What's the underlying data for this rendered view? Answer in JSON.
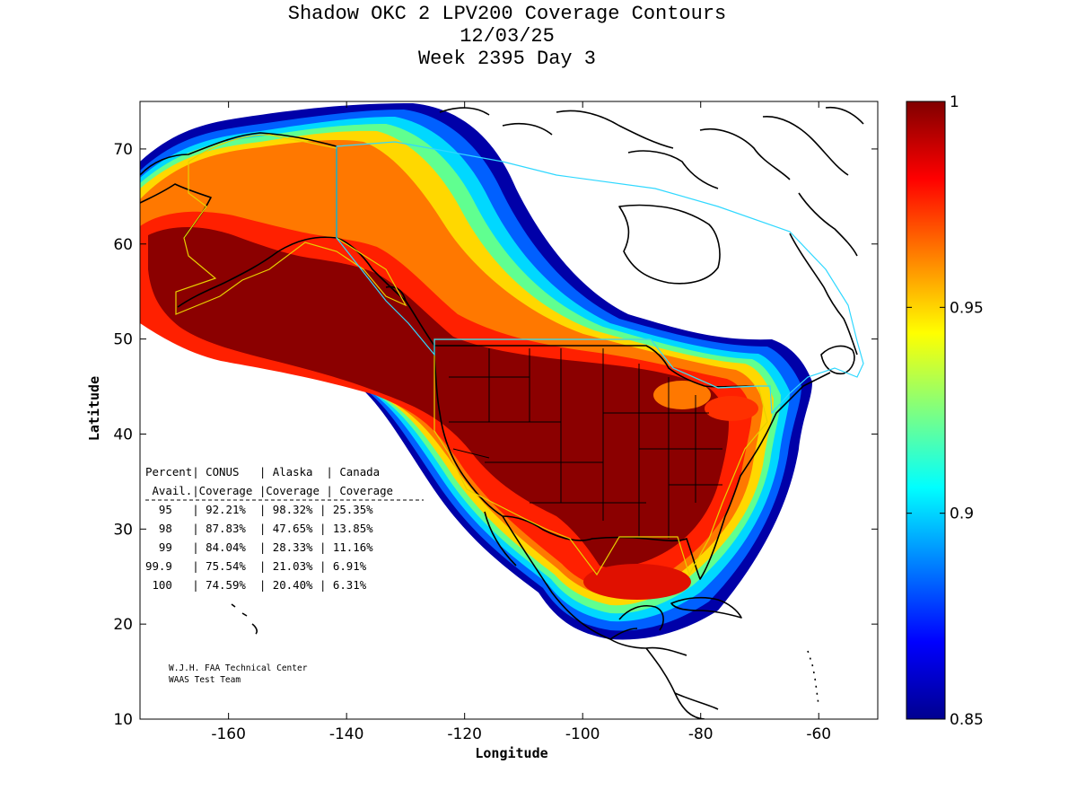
{
  "title": {
    "line1": "Shadow OKC 2 LPV200 Coverage Contours",
    "line2": "12/03/25",
    "line3": "Week 2395 Day 3"
  },
  "axes": {
    "xlabel": "Longitude",
    "ylabel": "Latitude",
    "xticks": [
      "-160",
      "-140",
      "-120",
      "-100",
      "-80",
      "-60"
    ],
    "yticks": [
      "10",
      "20",
      "30",
      "40",
      "50",
      "60",
      "70"
    ]
  },
  "colorbar": {
    "ticks": [
      "0.85",
      "0.9",
      "0.95",
      "1"
    ],
    "range": [
      0.85,
      1.0
    ]
  },
  "table": {
    "header1": "Percent| CONUS   | Alaska  | Canada",
    "header2": " Avail.|Coverage |Coverage | Coverage",
    "rule": "--------------------------------------",
    "rows": [
      "  95   | 92.21%  | 98.32% | 25.35%",
      "  98   | 87.83%  | 47.65% | 13.85%",
      "  99   | 84.04%  | 28.33% | 11.16%",
      "99.9   | 75.54%  | 21.03% | 6.91%",
      " 100   | 74.59%  | 20.40% | 6.31%"
    ]
  },
  "credit": {
    "line1": "W.J.H. FAA Technical Center",
    "line2": "WAAS Test Team"
  },
  "chart_data": {
    "type": "heatmap",
    "title": "Shadow OKC 2 LPV200 Coverage Contours",
    "xlabel": "Longitude",
    "ylabel": "Latitude",
    "xlim": [
      -175,
      -50
    ],
    "ylim": [
      10,
      75
    ],
    "colorbar_range": [
      0.85,
      1.0
    ],
    "colormap": "jet",
    "regions": [
      "CONUS",
      "Alaska",
      "Canada"
    ],
    "availability_levels": [
      "95",
      "98",
      "99",
      "99.9",
      "100"
    ],
    "coverage_percent": {
      "CONUS": [
        92.21,
        87.83,
        84.04,
        75.54,
        74.59
      ],
      "Alaska": [
        98.32,
        47.65,
        28.33,
        21.03,
        20.4
      ],
      "Canada": [
        25.35,
        13.85,
        11.16,
        6.91,
        6.31
      ]
    }
  }
}
